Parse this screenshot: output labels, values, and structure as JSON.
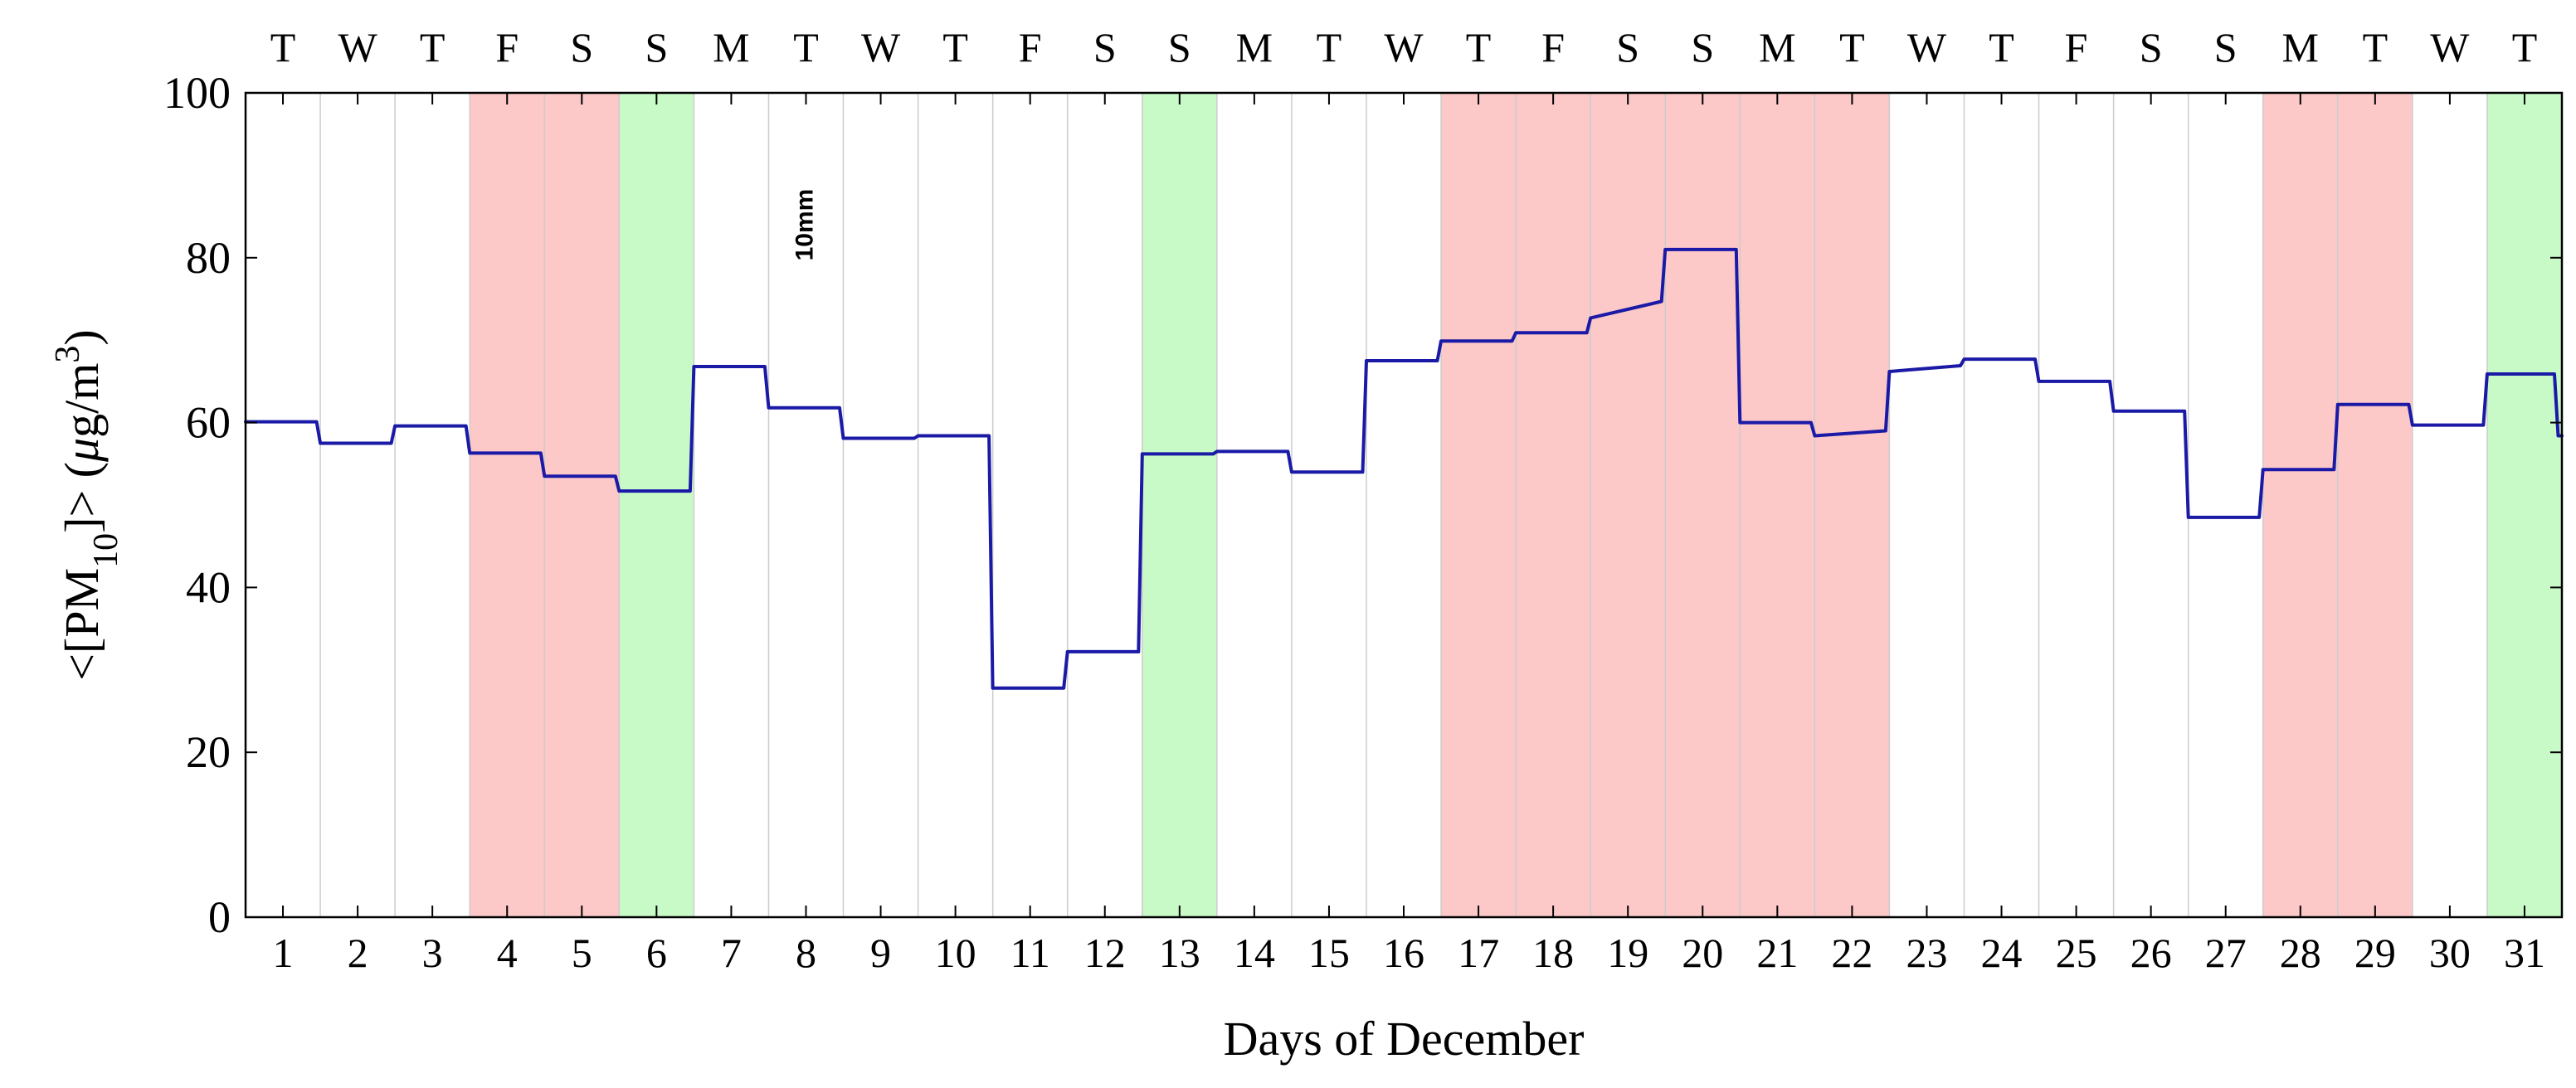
{
  "chart_data": {
    "type": "line",
    "xlabel": "Days of December",
    "ylabel": "<[PM10]> (μg/m3)",
    "ylabel_parts": {
      "open": "<[PM",
      "sub": "10",
      "close": "]> (",
      "mu": "μ",
      "g": "g/m",
      "sup": "3",
      "end": ")"
    },
    "xlim": [
      0.5,
      31.5
    ],
    "ylim": [
      0,
      100
    ],
    "yticks": [
      0,
      20,
      40,
      60,
      80,
      100
    ],
    "xticks": [
      1,
      2,
      3,
      4,
      5,
      6,
      7,
      8,
      9,
      10,
      11,
      12,
      13,
      14,
      15,
      16,
      17,
      18,
      19,
      20,
      21,
      22,
      23,
      24,
      25,
      26,
      27,
      28,
      29,
      30,
      31
    ],
    "weekday_labels": [
      "T",
      "W",
      "T",
      "F",
      "S",
      "S",
      "M",
      "T",
      "W",
      "T",
      "F",
      "S",
      "S",
      "M",
      "T",
      "W",
      "T",
      "F",
      "S",
      "S",
      "M",
      "T",
      "W",
      "T",
      "F",
      "S",
      "S",
      "M",
      "T",
      "W",
      "T"
    ],
    "grid": "vertical day separators",
    "annotation": {
      "text": "10mm",
      "x": 8,
      "y": 84
    },
    "colors": {
      "line": "#1a1aa6",
      "red_band": "#fcc8c8",
      "green_band": "#c8fac8",
      "grid": "#cccccc",
      "axis": "#000000"
    },
    "bands": [
      {
        "start": 3.5,
        "end": 5.5,
        "color": "red"
      },
      {
        "start": 5.5,
        "end": 6.5,
        "color": "green"
      },
      {
        "start": 12.5,
        "end": 13.5,
        "color": "green"
      },
      {
        "start": 16.5,
        "end": 22.5,
        "color": "red"
      },
      {
        "start": 27.5,
        "end": 29.5,
        "color": "red"
      },
      {
        "start": 30.5,
        "end": 31.5,
        "color": "green"
      }
    ],
    "series": [
      {
        "points": [
          [
            0.5,
            60.1
          ],
          [
            1.45,
            60.1
          ],
          [
            1.5,
            57.5
          ],
          [
            2.45,
            57.5
          ],
          [
            2.5,
            59.6
          ],
          [
            3.45,
            59.6
          ],
          [
            3.5,
            56.3
          ],
          [
            4.45,
            56.3
          ],
          [
            4.5,
            53.5
          ],
          [
            5.45,
            53.5
          ],
          [
            5.5,
            51.7
          ],
          [
            6.45,
            51.7
          ],
          [
            6.5,
            66.8
          ],
          [
            7.45,
            66.8
          ],
          [
            7.5,
            61.8
          ],
          [
            8.45,
            61.8
          ],
          [
            8.5,
            58.1
          ],
          [
            9.45,
            58.1
          ],
          [
            9.5,
            58.4
          ],
          [
            10.45,
            58.4
          ],
          [
            10.5,
            27.8
          ],
          [
            11.45,
            27.8
          ],
          [
            11.5,
            32.2
          ],
          [
            12.45,
            32.2
          ],
          [
            12.5,
            56.2
          ],
          [
            13.45,
            56.2
          ],
          [
            13.5,
            56.5
          ],
          [
            14.45,
            56.5
          ],
          [
            14.5,
            54.0
          ],
          [
            15.45,
            54.0
          ],
          [
            15.5,
            67.5
          ],
          [
            16.45,
            67.5
          ],
          [
            16.5,
            69.9
          ],
          [
            17.45,
            69.9
          ],
          [
            17.5,
            70.9
          ],
          [
            18.45,
            70.9
          ],
          [
            18.5,
            72.7
          ],
          [
            19.45,
            74.7
          ],
          [
            19.5,
            81.0
          ],
          [
            20.45,
            81.0
          ],
          [
            20.5,
            60.0
          ],
          [
            21.45,
            60.0
          ],
          [
            21.5,
            58.4
          ],
          [
            22.45,
            59.0
          ],
          [
            22.5,
            66.2
          ],
          [
            23.45,
            66.9
          ],
          [
            23.5,
            67.7
          ],
          [
            24.45,
            67.7
          ],
          [
            24.5,
            65.0
          ],
          [
            25.45,
            65.0
          ],
          [
            25.5,
            61.4
          ],
          [
            26.45,
            61.4
          ],
          [
            26.5,
            48.5
          ],
          [
            27.45,
            48.5
          ],
          [
            27.5,
            54.3
          ],
          [
            28.45,
            54.3
          ],
          [
            28.5,
            62.2
          ],
          [
            29.45,
            62.2
          ],
          [
            29.5,
            59.7
          ],
          [
            30.45,
            59.7
          ],
          [
            30.5,
            65.9
          ],
          [
            31.4,
            65.9
          ],
          [
            31.45,
            58.4
          ],
          [
            31.5,
            58.4
          ]
        ]
      }
    ]
  }
}
